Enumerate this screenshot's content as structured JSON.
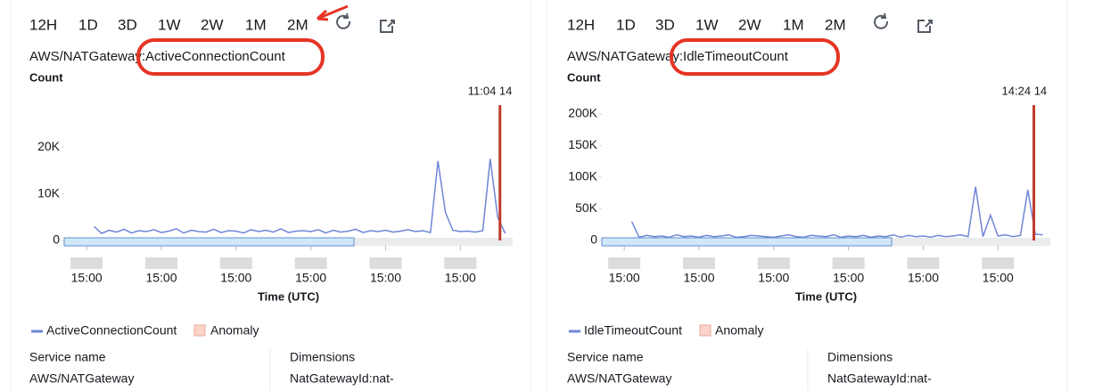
{
  "chart_data": [
    {
      "type": "line",
      "title": "AWS/NATGateway:ActiveConnectionCount",
      "y_label": "Count",
      "x_label": "Time (UTC)",
      "x": [
        4,
        5,
        6,
        7,
        8,
        9,
        10,
        11,
        12,
        13,
        14,
        15,
        16,
        17,
        18,
        19,
        20,
        21,
        22,
        23,
        24,
        25,
        26,
        27,
        28,
        29,
        30,
        31,
        32,
        33,
        34,
        35,
        36,
        37,
        38,
        39,
        40,
        41,
        42,
        43,
        44,
        45,
        46,
        47,
        48,
        49,
        50,
        51,
        52,
        53,
        54,
        55,
        56,
        57,
        58,
        59
      ],
      "series": [
        {
          "name": "ActiveConnectionCount",
          "color": "#6f86d6",
          "values": [
            3000,
            1500,
            2200,
            1800,
            2400,
            1600,
            2100,
            1900,
            2300,
            1700,
            2000,
            2500,
            1600,
            2200,
            1900,
            1800,
            2400,
            1700,
            2100,
            2000,
            1600,
            2300,
            1900,
            2200,
            1800,
            2500,
            1700,
            2000,
            2100,
            1900,
            2300,
            1600,
            2200,
            1800,
            2000,
            2400,
            1700,
            2100,
            1900,
            2200,
            1800,
            2000,
            2300,
            1900,
            2100,
            1700,
            17000,
            6000,
            2200,
            1900,
            2000,
            1800,
            2100,
            17500,
            5000,
            1500
          ]
        }
      ],
      "anomaly_legend": "Anomaly",
      "marker": {
        "label": "11:04 14",
        "x": 58.3,
        "color": "#c0392b"
      },
      "xlim": [
        0,
        60
      ],
      "xticks": [
        {
          "value": 3,
          "label": "15:00"
        },
        {
          "value": 13,
          "label": "15:00"
        },
        {
          "value": 23,
          "label": "15:00"
        },
        {
          "value": 33,
          "label": "15:00"
        },
        {
          "value": 43,
          "label": "15:00"
        },
        {
          "value": 53,
          "label": "15:00"
        }
      ],
      "ylim": [
        0,
        29000
      ],
      "yticks": [
        0,
        {
          "value": 10000,
          "label": "10K"
        },
        {
          "value": 20000,
          "label": "20K"
        }
      ]
    },
    {
      "type": "line",
      "title": "AWS/NATGateway:IdleTimeoutCount",
      "y_label": "Count",
      "x_label": "Time (UTC)",
      "x": [
        4,
        5,
        6,
        7,
        8,
        9,
        10,
        11,
        12,
        13,
        14,
        15,
        16,
        17,
        18,
        19,
        20,
        21,
        22,
        23,
        24,
        25,
        26,
        27,
        28,
        29,
        30,
        31,
        32,
        33,
        34,
        35,
        36,
        37,
        38,
        39,
        40,
        41,
        42,
        43,
        44,
        45,
        46,
        47,
        48,
        49,
        50,
        51,
        52,
        53,
        54,
        55,
        56,
        57,
        58,
        59
      ],
      "series": [
        {
          "name": "IdleTimeoutCount",
          "color": "#6f86d6",
          "values": [
            30000,
            5000,
            8000,
            6000,
            7000,
            5000,
            9000,
            6000,
            7000,
            5000,
            8000,
            6000,
            7000,
            9000,
            5000,
            6000,
            8000,
            7000,
            6000,
            5000,
            7000,
            9000,
            6000,
            5000,
            8000,
            7000,
            6000,
            9000,
            5000,
            7000,
            6000,
            8000,
            5000,
            7000,
            6000,
            9000,
            5000,
            8000,
            6000,
            7000,
            5000,
            8000,
            6000,
            7000,
            9000,
            6000,
            85000,
            6000,
            40000,
            7000,
            9000,
            6000,
            8000,
            80000,
            10000,
            9000
          ]
        }
      ],
      "anomaly_legend": "Anomaly",
      "marker": {
        "label": "14:24 14",
        "x": 57.8,
        "color": "#c0392b"
      },
      "xlim": [
        0,
        60
      ],
      "xticks": [
        {
          "value": 3,
          "label": "15:00"
        },
        {
          "value": 13,
          "label": "15:00"
        },
        {
          "value": 23,
          "label": "15:00"
        },
        {
          "value": 33,
          "label": "15:00"
        },
        {
          "value": 43,
          "label": "15:00"
        },
        {
          "value": 53,
          "label": "15:00"
        }
      ],
      "ylim": [
        0,
        214000
      ],
      "yticks": [
        0,
        {
          "value": 50000,
          "label": "50K"
        },
        {
          "value": 100000,
          "label": "100K"
        },
        {
          "value": 150000,
          "label": "150K"
        },
        {
          "value": 200000,
          "label": "200K"
        }
      ]
    }
  ],
  "panels": [
    {
      "range_buttons": [
        "12H",
        "1D",
        "3D",
        "1W",
        "2W",
        "1M",
        "2M"
      ],
      "table": {
        "headers": [
          "Service name",
          "Dimensions"
        ],
        "row": [
          "AWS/NATGateway",
          "NatGatewayId:nat-"
        ]
      }
    },
    {
      "range_buttons": [
        "12H",
        "1D",
        "3D",
        "1W",
        "2W",
        "1M",
        "2M"
      ],
      "table": {
        "headers": [
          "Service name",
          "Dimensions"
        ],
        "row": [
          "AWS/NATGateway",
          "NatGatewayId:nat-"
        ]
      }
    }
  ]
}
